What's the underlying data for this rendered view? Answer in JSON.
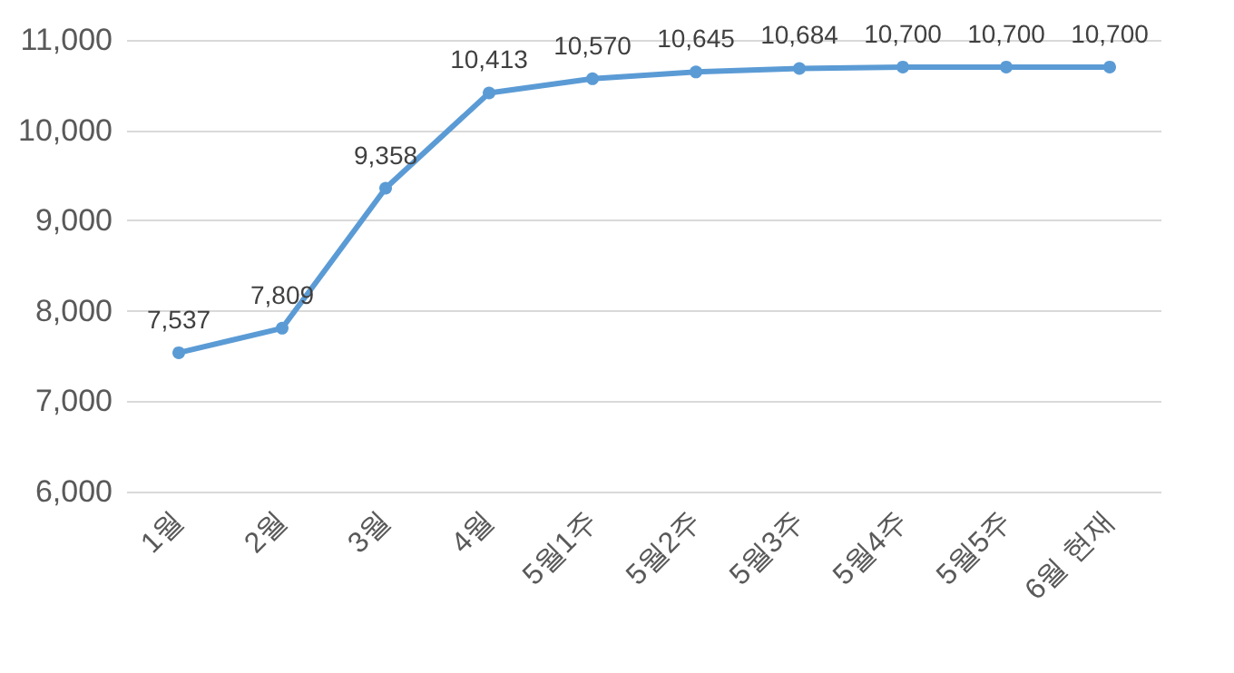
{
  "chart_data": {
    "type": "line",
    "categories": [
      "1월",
      "2월",
      "3월",
      "4월",
      "5월1주",
      "5월2주",
      "5월3주",
      "5월4주",
      "5월5주",
      "6월 현재"
    ],
    "series": [
      {
        "color": "#5b9bd5",
        "values": [
          7537,
          7809,
          9358,
          10413,
          10570,
          10645,
          10684,
          10700,
          10700,
          10700
        ],
        "value_labels": [
          "7,537",
          "7,809",
          "9,358",
          "10,413",
          "10,570",
          "10,645",
          "10,684",
          "10,700",
          "10,700",
          "10,700"
        ]
      }
    ],
    "ylim": [
      6000,
      11000
    ],
    "yticks": [
      {
        "value": 6000,
        "label": "6,000"
      },
      {
        "value": 7000,
        "label": "7,000"
      },
      {
        "value": 8000,
        "label": "8,000"
      },
      {
        "value": 9000,
        "label": "9,000"
      },
      {
        "value": 10000,
        "label": "10,000"
      },
      {
        "value": 11000,
        "label": "11,000"
      }
    ],
    "grid": "y",
    "marker": "circle",
    "line_style": "solid"
  }
}
